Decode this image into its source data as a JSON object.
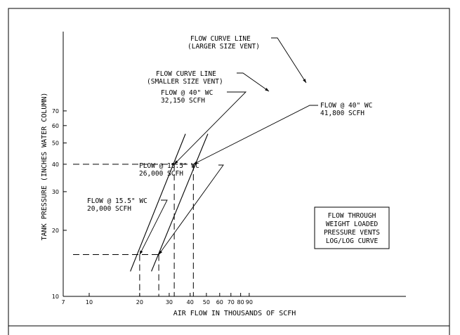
{
  "chart_data": {
    "type": "line",
    "xscale": "log",
    "yscale": "log",
    "xlabel": "AIR FLOW IN THOUSANDS OF SCFH",
    "ylabel": "TANK PRESSURE (INCHES WATER COLUMN)",
    "xlim": [
      7,
      100
    ],
    "ylim": [
      10,
      75
    ],
    "x_ticks": [
      7,
      10,
      20,
      30,
      40,
      50,
      60,
      70,
      80,
      90
    ],
    "y_ticks": [
      10,
      20,
      30,
      40,
      50,
      60,
      70
    ],
    "grid": false,
    "series": [
      {
        "name": "FLOW CURVE LINE (SMALLER SIZE VENT)",
        "x": [
          17.6,
          37.5
        ],
        "y": [
          13.0,
          55.0
        ]
      },
      {
        "name": "FLOW CURVE LINE (LARGER SIZE VENT)",
        "x": [
          23.5,
          51.0
        ],
        "y": [
          13.0,
          55.0
        ]
      }
    ],
    "reference_points": [
      {
        "x": 20.0,
        "y": 15.5,
        "label": [
          "FLOW @ 15.5\" WC",
          "20,000 SCFH"
        ]
      },
      {
        "x": 26.0,
        "y": 15.5,
        "label": [
          "FLOW @ 15.5\" WC",
          "26,000 SCFH"
        ]
      },
      {
        "x": 32.15,
        "y": 40,
        "label": [
          "FLOW @ 40\" WC",
          "32,150 SCFH"
        ]
      },
      {
        "x": 41.8,
        "y": 40,
        "label": [
          "FLOW @ 40\" WC",
          "41,800 SCFH"
        ]
      }
    ],
    "curve_labels": [
      [
        "FLOW CURVE LINE",
        "(SMALLER SIZE VENT)"
      ],
      [
        "FLOW CURVE LINE",
        "(LARGER SIZE VENT)"
      ]
    ],
    "legend": {
      "lines": [
        "FLOW THROUGH",
        "WEIGHT LOADED",
        "PRESSURE VENTS",
        "LOG/LOG CURVE"
      ],
      "placement": "right"
    }
  }
}
